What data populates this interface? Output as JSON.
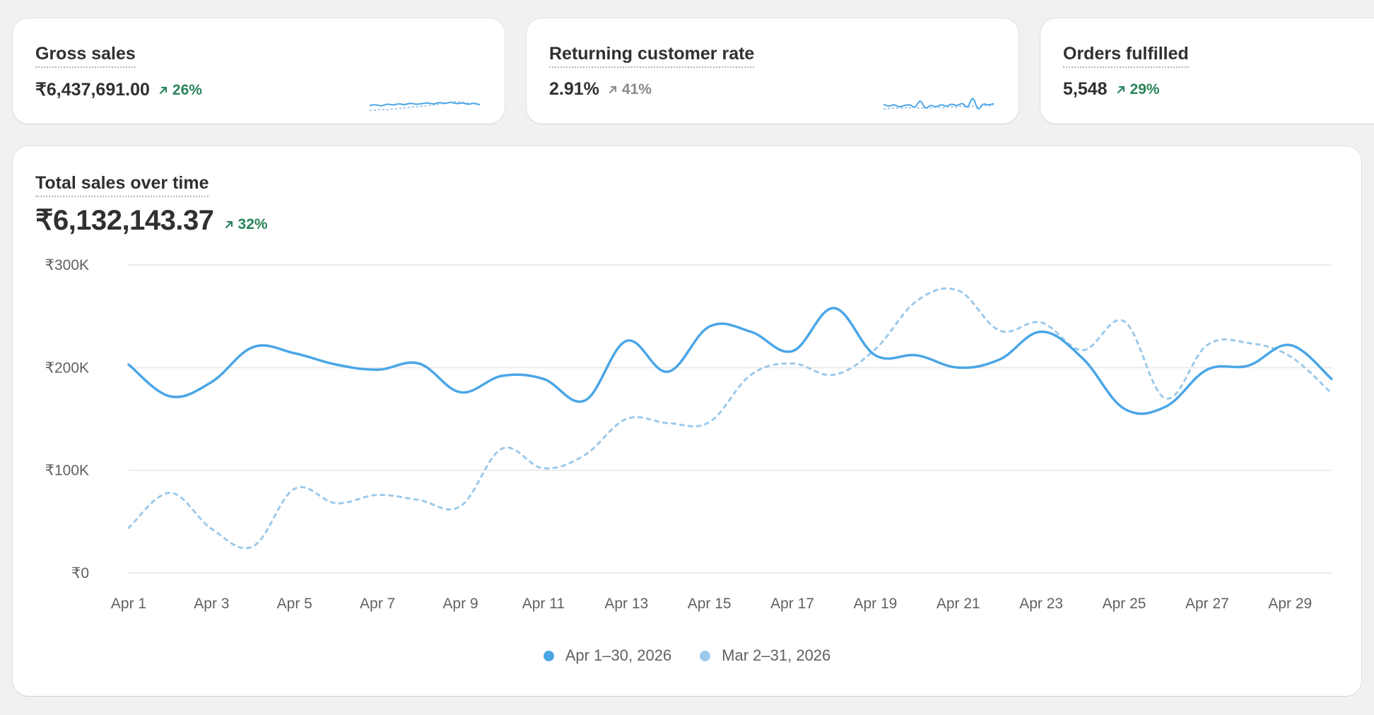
{
  "colors": {
    "current": "#4aa6e6",
    "previous": "#9cc9ea",
    "positive": "#29845a",
    "neutral": "#8a8a8a",
    "grid": "#e6e6e6"
  },
  "kpis": [
    {
      "title": "Gross sales",
      "value": "₹6,437,691.00",
      "change": "26%",
      "change_tone": "positive",
      "spark_current": [
        62,
        60,
        63,
        58,
        60,
        57,
        59,
        55,
        58,
        56,
        54,
        57,
        53,
        55,
        52,
        56,
        54,
        58,
        55,
        60
      ],
      "spark_previous": [
        78,
        77,
        75,
        76,
        73,
        72,
        70,
        68,
        66,
        64,
        62,
        60,
        58,
        55,
        52,
        50,
        52,
        55,
        57,
        59
      ]
    },
    {
      "title": "Returning customer rate",
      "value": "2.91%",
      "change": "41%",
      "change_tone": "neutral",
      "spark_current": [
        58,
        64,
        60,
        66,
        62,
        60,
        67,
        48,
        70,
        62,
        66,
        60,
        64,
        58,
        62,
        56,
        66,
        40,
        72,
        58,
        60,
        56
      ],
      "spark_previous": [
        74,
        72,
        70,
        71,
        69,
        70,
        68,
        71,
        69,
        70,
        67,
        69,
        68,
        66,
        67,
        65,
        68,
        64,
        66,
        62,
        63,
        60
      ]
    },
    {
      "title": "Orders fulfilled",
      "value": "5,548",
      "change": "29%",
      "change_tone": "positive"
    }
  ],
  "chart": {
    "title": "Total sales over time",
    "value": "₹6,132,143.37",
    "change": "32%"
  },
  "chart_data": {
    "type": "line",
    "x": [
      "Apr 1",
      "Apr 2",
      "Apr 3",
      "Apr 4",
      "Apr 5",
      "Apr 6",
      "Apr 7",
      "Apr 8",
      "Apr 9",
      "Apr 10",
      "Apr 11",
      "Apr 12",
      "Apr 13",
      "Apr 14",
      "Apr 15",
      "Apr 16",
      "Apr 17",
      "Apr 18",
      "Apr 19",
      "Apr 20",
      "Apr 21",
      "Apr 22",
      "Apr 23",
      "Apr 24",
      "Apr 25",
      "Apr 26",
      "Apr 27",
      "Apr 28",
      "Apr 29",
      "Apr 30"
    ],
    "x_tick_labels": [
      "Apr 1",
      "Apr 3",
      "Apr 5",
      "Apr 7",
      "Apr 9",
      "Apr 11",
      "Apr 13",
      "Apr 15",
      "Apr 17",
      "Apr 19",
      "Apr 21",
      "Apr 23",
      "Apr 25",
      "Apr 27",
      "Apr 29"
    ],
    "y_tick_labels": [
      "₹300K",
      "₹200K",
      "₹100K",
      "₹0"
    ],
    "y_ticks": [
      300000,
      200000,
      100000,
      0
    ],
    "ylim": [
      0,
      300000
    ],
    "grid": true,
    "legend_position": "bottom-center",
    "series": [
      {
        "name": "Apr 1–30, 2026",
        "style": "solid",
        "values": [
          203000,
          172000,
          186000,
          220000,
          214000,
          203000,
          198000,
          204000,
          176000,
          192000,
          189000,
          168000,
          226000,
          196000,
          240000,
          235000,
          216000,
          258000,
          212000,
          212000,
          200000,
          208000,
          235000,
          209000,
          160000,
          162000,
          198000,
          202000,
          222000,
          189000
        ]
      },
      {
        "name": "Mar 2–31, 2026",
        "style": "dashed",
        "values": [
          44000,
          78000,
          43000,
          26000,
          82000,
          68000,
          76000,
          71000,
          65000,
          121000,
          102000,
          115000,
          150000,
          146000,
          147000,
          193000,
          204000,
          193000,
          218000,
          265000,
          275000,
          236000,
          244000,
          217000,
          245000,
          170000,
          222000,
          224000,
          211000,
          175000
        ]
      }
    ]
  }
}
